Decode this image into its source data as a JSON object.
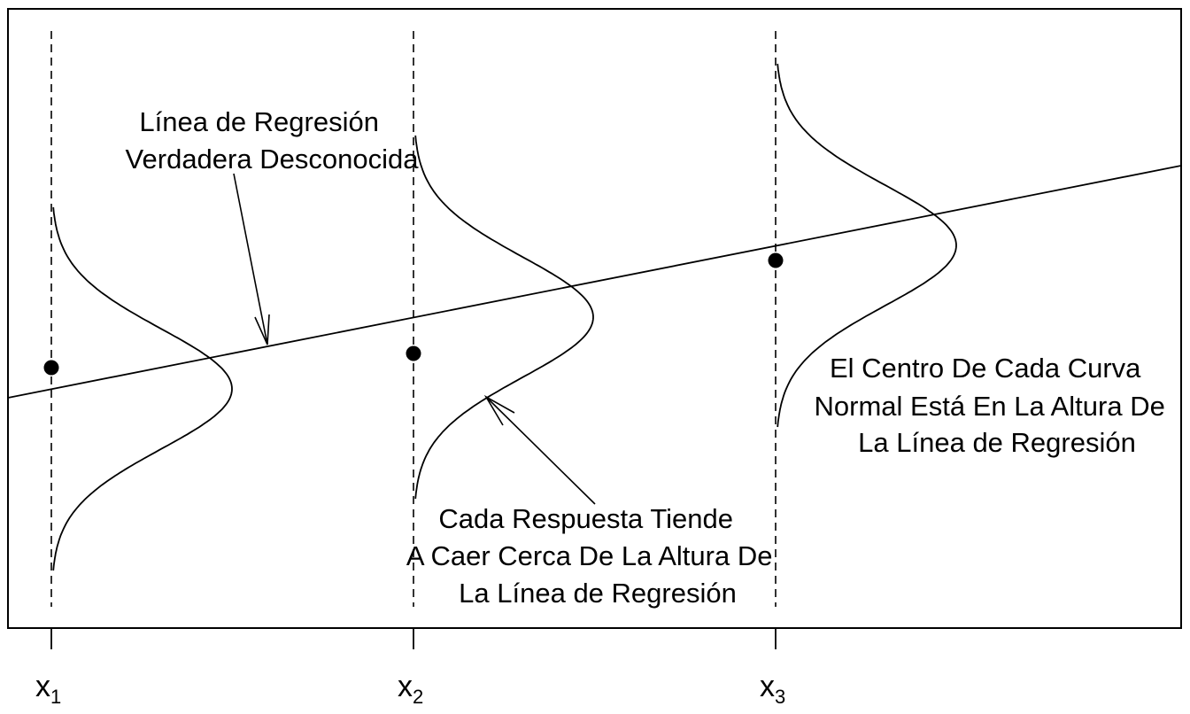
{
  "diagram": {
    "regression_label": [
      "Línea de Regresión",
      "Verdadera Desconocida"
    ],
    "response_label": [
      "Cada Respuesta Tiende",
      "A Caer Cerca De La Altura De",
      "La Línea de Regresión"
    ],
    "center_label": [
      "El Centro De Cada Curva",
      "Normal Está En La Altura De",
      "La Línea de Regresión"
    ],
    "x_ticks": [
      {
        "base": "x",
        "sub": "1"
      },
      {
        "base": "x",
        "sub": "2"
      },
      {
        "base": "x",
        "sub": "3"
      }
    ]
  }
}
